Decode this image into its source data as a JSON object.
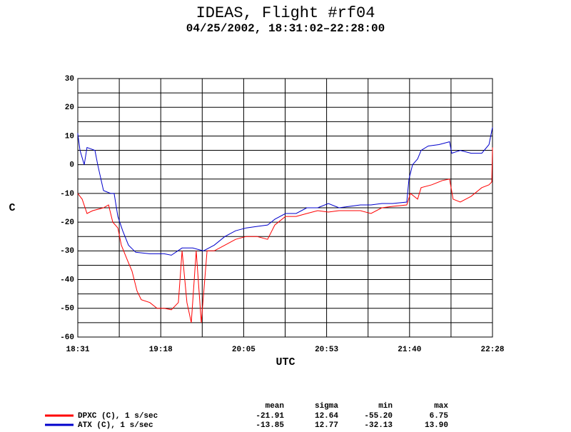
{
  "chart_data": {
    "type": "line",
    "title": "IDEAS, Flight #rf04",
    "subtitle": "04/25/2002, 18:31:02–22:28:00",
    "xlabel": "UTC",
    "ylabel": "C",
    "xlim": [
      1111.03,
      1348.0
    ],
    "ylim": [
      -60,
      30
    ],
    "xticks": [
      {
        "value": 1111.03,
        "label": "18:31"
      },
      {
        "value": 1158.43,
        "label": "19:18"
      },
      {
        "value": 1205.82,
        "label": "20:05"
      },
      {
        "value": 1253.21,
        "label": "20:53"
      },
      {
        "value": 1300.61,
        "label": "21:40"
      },
      {
        "value": 1348.0,
        "label": "22:28"
      }
    ],
    "yticks": [
      -60,
      -50,
      -40,
      -30,
      -20,
      -10,
      0,
      10,
      20,
      30
    ],
    "grid": true,
    "x_minor_divisions": 2,
    "y_minor_divisions": 2,
    "series": [
      {
        "name": "DPXC (C), 1 s/sec",
        "color": "#ff0000",
        "x": [
          1111.0,
          1113.5,
          1116.3,
          1119.6,
          1125.7,
          1128.6,
          1131.0,
          1133.9,
          1135.9,
          1139.2,
          1142.0,
          1144.9,
          1147.3,
          1152.2,
          1156.3,
          1160.4,
          1164.5,
          1168.5,
          1170.6,
          1173.4,
          1175.9,
          1178.7,
          1181.6,
          1184.9,
          1189.0,
          1195.1,
          1201.2,
          1207.3,
          1213.4,
          1219.5,
          1223.6,
          1229.7,
          1235.8,
          1241.9,
          1248.1,
          1254.2,
          1260.3,
          1266.4,
          1272.5,
          1278.6,
          1284.8,
          1290.9,
          1299.0,
          1301.1,
          1305.2,
          1307.2,
          1313.3,
          1319.4,
          1323.5,
          1325.5,
          1329.6,
          1335.8,
          1341.9,
          1346.0,
          1347.6,
          1348.0
        ],
        "values": [
          -10,
          -12,
          -17,
          -16,
          -15,
          -14,
          -20,
          -22,
          -28,
          -33,
          -37,
          -44,
          -47,
          -48,
          -50,
          -50,
          -50.5,
          -48,
          -30,
          -48,
          -55,
          -30,
          -55,
          -30,
          -30,
          -28,
          -26,
          -25,
          -25,
          -26,
          -21,
          -18,
          -18,
          -17,
          -16,
          -16.5,
          -16,
          -16,
          -16,
          -17,
          -15,
          -14.5,
          -14,
          -10,
          -12,
          -8,
          -7,
          -5.5,
          -5,
          -12,
          -13,
          -11,
          -8,
          -7,
          -6,
          6
        ]
      },
      {
        "name": "ATX (C), 1 s/sec",
        "color": "#0000cc",
        "x": [
          1111.0,
          1112.3,
          1114.7,
          1116.3,
          1120.8,
          1122.4,
          1125.7,
          1129.8,
          1131.8,
          1133.9,
          1136.7,
          1140.0,
          1144.1,
          1152.2,
          1160.4,
          1164.5,
          1170.6,
          1176.7,
          1182.8,
          1189.0,
          1195.1,
          1201.2,
          1207.3,
          1213.4,
          1219.5,
          1223.6,
          1229.7,
          1235.8,
          1241.9,
          1248.1,
          1254.2,
          1260.3,
          1266.4,
          1272.5,
          1278.6,
          1284.8,
          1290.9,
          1299.0,
          1300.3,
          1302.3,
          1305.2,
          1307.2,
          1311.3,
          1317.4,
          1323.5,
          1324.7,
          1329.6,
          1335.8,
          1341.9,
          1346.0,
          1348.0
        ],
        "values": [
          11,
          5,
          0,
          6,
          5,
          0,
          -9,
          -10,
          -10,
          -18,
          -23,
          -28,
          -30.5,
          -31,
          -31,
          -31.5,
          -29,
          -29,
          -30,
          -28,
          -25,
          -23,
          -22,
          -21.5,
          -21,
          -19,
          -17,
          -17,
          -15,
          -15,
          -13.5,
          -15,
          -14.5,
          -14,
          -14,
          -13.5,
          -13.5,
          -13,
          -5,
          0,
          2,
          5,
          6.5,
          7,
          8,
          4,
          5,
          4,
          4,
          7,
          13
        ]
      }
    ],
    "summary": {
      "columns": [
        "mean",
        "sigma",
        "min",
        "max"
      ],
      "rows": [
        [
          "-21.91",
          "12.64",
          "-55.20",
          "6.75"
        ],
        [
          "-13.85",
          "12.77",
          "-32.13",
          "13.90"
        ]
      ]
    }
  }
}
